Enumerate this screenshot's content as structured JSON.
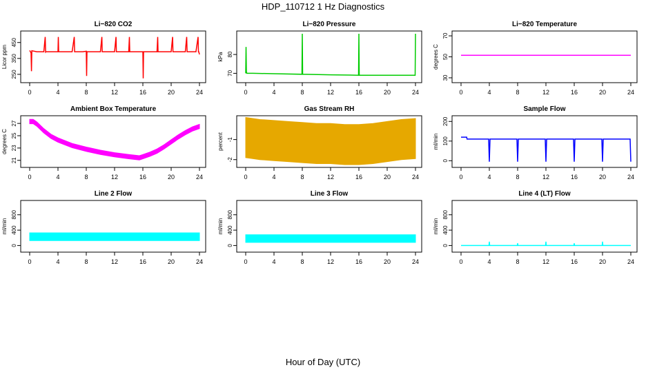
{
  "title": "HDP_110712  1 Hz Diagnostics",
  "xlabel": "Hour of Day (UTC)",
  "chart_data": [
    {
      "type": "line",
      "title": "Li−820 CO2",
      "ylabel": "Licor ppm",
      "color": "#ff0000",
      "xticks": [
        0,
        4,
        8,
        12,
        16,
        20,
        24
      ],
      "yticks": [
        250,
        350,
        450
      ],
      "xlim": [
        0,
        24
      ],
      "ylim": [
        215,
        505
      ],
      "grid": false,
      "series": [
        {
          "x": [
            0,
            0.2,
            0.25,
            0.3,
            1,
            2,
            2.2,
            2.25,
            2.3,
            3,
            3.7,
            4,
            4.05,
            4.1,
            5,
            6,
            6.3,
            6.35,
            6.4,
            7.5,
            8,
            8.05,
            8.1,
            8.5,
            9,
            10,
            10.2,
            10.25,
            10.3,
            11,
            12,
            12.2,
            12.25,
            12.3,
            13,
            14,
            14.1,
            14.15,
            14.2,
            15,
            15.9,
            16,
            16.05,
            16.1,
            17,
            18,
            18.1,
            18.15,
            18.2,
            19,
            20,
            20.2,
            20.25,
            20.3,
            21,
            22,
            22.2,
            22.25,
            22.3,
            23.5,
            23.8,
            23.85,
            23.9,
            24
          ],
          "y": [
            400,
            385,
            270,
            398,
            392,
            392,
            485,
            390,
            392,
            392,
            392,
            392,
            485,
            392,
            392,
            392,
            485,
            392,
            392,
            392,
            395,
            240,
            392,
            392,
            392,
            392,
            485,
            392,
            392,
            392,
            392,
            485,
            392,
            392,
            392,
            392,
            485,
            392,
            392,
            392,
            392,
            392,
            225,
            392,
            392,
            392,
            485,
            392,
            392,
            392,
            392,
            485,
            392,
            392,
            392,
            392,
            485,
            392,
            392,
            392,
            485,
            392,
            392,
            375
          ]
        }
      ]
    },
    {
      "type": "line",
      "title": "Li−820 Pressure",
      "ylabel": "kPa",
      "color": "#00cc00",
      "xticks": [
        0,
        4,
        8,
        12,
        16,
        20,
        24
      ],
      "yticks": [
        70,
        80
      ],
      "xlim": [
        0,
        24
      ],
      "ylim": [
        66.5,
        91
      ],
      "grid": false,
      "series": [
        {
          "x": [
            0,
            0.05,
            0.1,
            0.15,
            1,
            4,
            7.95,
            8,
            8.05,
            12,
            15.95,
            16,
            16.05,
            20,
            23.95,
            24
          ],
          "y": [
            70,
            84,
            71,
            70,
            70,
            69.8,
            69.5,
            91,
            69.5,
            69.2,
            69,
            91,
            69,
            69,
            69,
            91
          ]
        }
      ]
    },
    {
      "type": "line",
      "title": "Li−820 Temperature",
      "ylabel": "degrees C",
      "color": "#ff00ff",
      "xticks": [
        0,
        4,
        8,
        12,
        16,
        20,
        24
      ],
      "yticks": [
        30,
        50,
        70
      ],
      "xlim": [
        0,
        24
      ],
      "ylim": [
        28,
        72
      ],
      "grid": false,
      "series": [
        {
          "x": [
            0,
            24
          ],
          "y": [
            51.5,
            51.5
          ]
        }
      ]
    },
    {
      "type": "line",
      "title": "Ambient Box Temperature",
      "ylabel": "degrees C",
      "color": "#ff00ff",
      "band": 0.35,
      "xticks": [
        0,
        4,
        8,
        12,
        16,
        20,
        24
      ],
      "yticks": [
        21,
        23,
        25,
        27
      ],
      "xlim": [
        0,
        24
      ],
      "ylim": [
        20.3,
        27.8
      ],
      "grid": false,
      "series": [
        {
          "x": [
            0,
            0.5,
            1,
            2,
            3,
            4,
            6,
            8,
            10,
            12,
            14,
            15.5,
            16,
            17,
            18,
            19,
            20,
            21,
            22,
            23,
            24
          ],
          "y": [
            27.3,
            27.3,
            26.9,
            25.8,
            24.9,
            24.3,
            23.4,
            22.8,
            22.3,
            21.9,
            21.6,
            21.4,
            21.6,
            22,
            22.5,
            23.2,
            24,
            24.8,
            25.5,
            26.1,
            26.5
          ]
        }
      ]
    },
    {
      "type": "line",
      "title": "Gas Stream RH",
      "ylabel": "percent",
      "color": "#e6a800",
      "band": 1.0,
      "xticks": [
        0,
        4,
        8,
        12,
        16,
        20,
        24
      ],
      "yticks": [
        -2.0,
        -1.0
      ],
      "xlim": [
        0,
        24
      ],
      "ylim": [
        -2.25,
        0.05
      ],
      "grid": false,
      "series": [
        {
          "x": [
            0,
            1,
            2,
            4,
            6,
            8,
            10,
            12,
            14,
            16,
            18,
            20,
            22,
            24
          ],
          "y": [
            -0.9,
            -0.95,
            -1.0,
            -1.05,
            -1.1,
            -1.15,
            -1.2,
            -1.2,
            -1.25,
            -1.25,
            -1.2,
            -1.1,
            -1.0,
            -0.95
          ]
        }
      ]
    },
    {
      "type": "line",
      "title": "Sample Flow",
      "ylabel": "ml/min",
      "color": "#0000ff",
      "xticks": [
        0,
        4,
        8,
        12,
        16,
        20,
        24
      ],
      "yticks": [
        0,
        100,
        200
      ],
      "xlim": [
        0,
        24
      ],
      "ylim": [
        -20,
        215
      ],
      "grid": false,
      "series": [
        {
          "x": [
            0,
            0.8,
            0.85,
            3.9,
            4,
            4.1,
            7.9,
            8,
            8.1,
            11.9,
            12,
            12.1,
            15.9,
            16,
            16.1,
            19.9,
            20,
            20.1,
            23.9,
            24
          ],
          "y": [
            120,
            120,
            110,
            110,
            -5,
            110,
            110,
            -5,
            110,
            110,
            -5,
            110,
            110,
            -5,
            110,
            110,
            -5,
            110,
            110,
            -5
          ]
        }
      ]
    },
    {
      "type": "line",
      "title": "Line 2 Flow",
      "ylabel": "ml/min",
      "color": "#00ffff",
      "band": 100,
      "xticks": [
        0,
        4,
        8,
        12,
        16,
        20,
        24
      ],
      "yticks": [
        0,
        400,
        800
      ],
      "xlim": [
        0,
        24
      ],
      "ylim": [
        -100,
        1100
      ],
      "grid": false,
      "series": [
        {
          "x": [
            0,
            24
          ],
          "y": [
            230,
            230
          ]
        }
      ]
    },
    {
      "type": "line",
      "title": "Line 3 Flow",
      "ylabel": "ml/min",
      "color": "#00ffff",
      "band": 100,
      "xticks": [
        0,
        4,
        8,
        12,
        16,
        20,
        24
      ],
      "yticks": [
        0,
        400,
        800
      ],
      "xlim": [
        0,
        24
      ],
      "ylim": [
        -100,
        1100
      ],
      "grid": false,
      "series": [
        {
          "x": [
            0,
            24
          ],
          "y": [
            180,
            180
          ]
        }
      ]
    },
    {
      "type": "line",
      "title": "Line 4 (LT) Flow",
      "ylabel": "ml/min",
      "color": "#00ffff",
      "xticks": [
        0,
        4,
        8,
        12,
        16,
        20,
        24
      ],
      "yticks": [
        0,
        400,
        800
      ],
      "xlim": [
        0,
        24
      ],
      "ylim": [
        -100,
        1100
      ],
      "grid": false,
      "series": [
        {
          "x": [
            0,
            3.95,
            4,
            4.05,
            7.95,
            8,
            8.05,
            11.95,
            12,
            12.05,
            15.95,
            16,
            16.05,
            19.95,
            20,
            20.05,
            24
          ],
          "y": [
            0,
            0,
            100,
            0,
            0,
            60,
            0,
            0,
            100,
            0,
            0,
            60,
            0,
            0,
            100,
            0,
            0
          ]
        }
      ]
    }
  ]
}
